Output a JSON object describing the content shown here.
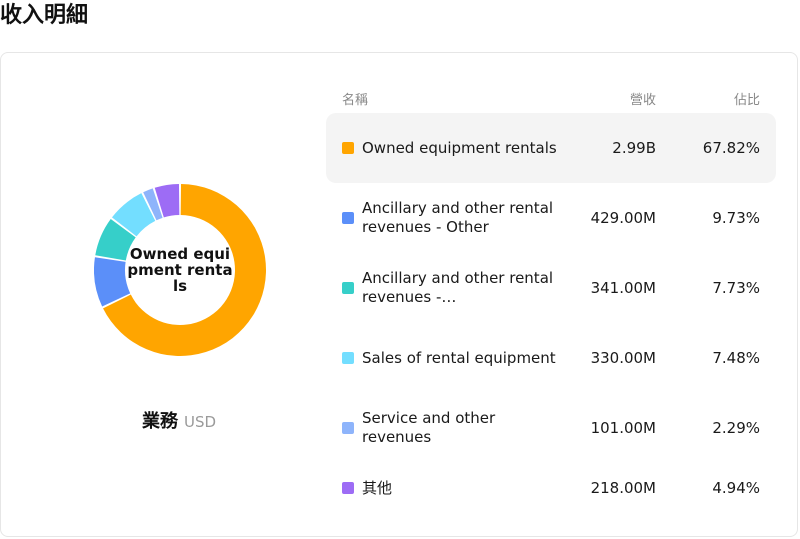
{
  "page": {
    "title": "收入明細"
  },
  "table": {
    "headers": {
      "name": "名稱",
      "revenue": "營收",
      "share": "佔比"
    },
    "rows": [
      {
        "name": "Owned equipment rentals",
        "revenue": "2.99B",
        "share": "67.82%",
        "color": "#FFA500",
        "highlighted": true
      },
      {
        "name": "Ancillary and other rental revenues - Other",
        "revenue": "429.00M",
        "share": "9.73%",
        "color": "#5B8FF9",
        "highlighted": false
      },
      {
        "name": "Ancillary and other rental revenues -…",
        "revenue": "341.00M",
        "share": "7.73%",
        "color": "#36CFC9",
        "highlighted": false
      },
      {
        "name": "Sales of rental equipment",
        "revenue": "330.00M",
        "share": "7.48%",
        "color": "#73DEFF",
        "highlighted": false
      },
      {
        "name": "Service and other revenues",
        "revenue": "101.00M",
        "share": "2.29%",
        "color": "#8EB4FB",
        "highlighted": false
      },
      {
        "name": "其他",
        "revenue": "218.00M",
        "share": "4.94%",
        "color": "#9D6CF5",
        "highlighted": false
      }
    ]
  },
  "donut": {
    "center_label": "Owned equipment rentals",
    "caption": "業務",
    "caption_unit": "USD"
  },
  "chart_data": {
    "type": "pie",
    "variant": "donut",
    "categories": [
      "Owned equipment rentals",
      "Ancillary and other rental revenues - Other",
      "Ancillary and other rental revenues -…",
      "Sales of rental equipment",
      "Service and other revenues",
      "其他"
    ],
    "values": [
      67.82,
      9.73,
      7.73,
      7.48,
      2.29,
      4.94
    ],
    "colors": [
      "#FFA500",
      "#5B8FF9",
      "#36CFC9",
      "#73DEFF",
      "#8EB4FB",
      "#9D6CF5"
    ],
    "highlighted_index": 0
  }
}
